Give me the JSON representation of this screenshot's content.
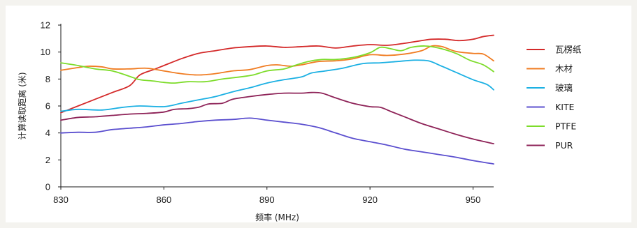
{
  "chart_data": {
    "type": "line",
    "xlabel": "频率 (MHz)",
    "ylabel": "计算读取距离 (米)",
    "xlim": [
      830,
      956
    ],
    "ylim": [
      0,
      12
    ],
    "x_ticks": [
      830,
      860,
      890,
      920,
      950
    ],
    "y_ticks": [
      0,
      2,
      4,
      6,
      8,
      10,
      12
    ],
    "grid": false,
    "legend_position": "right",
    "series": [
      {
        "name": "瓦楞纸",
        "color": "#d42a2a",
        "points": [
          [
            830,
            5.5
          ],
          [
            835,
            6.0
          ],
          [
            840,
            6.5
          ],
          [
            845,
            7.0
          ],
          [
            850,
            7.5
          ],
          [
            853,
            8.3
          ],
          [
            857,
            8.7
          ],
          [
            860,
            9.0
          ],
          [
            865,
            9.5
          ],
          [
            870,
            9.9
          ],
          [
            875,
            10.1
          ],
          [
            880,
            10.3
          ],
          [
            885,
            10.4
          ],
          [
            890,
            10.45
          ],
          [
            895,
            10.35
          ],
          [
            900,
            10.4
          ],
          [
            905,
            10.45
          ],
          [
            910,
            10.3
          ],
          [
            915,
            10.45
          ],
          [
            920,
            10.55
          ],
          [
            925,
            10.5
          ],
          [
            930,
            10.65
          ],
          [
            935,
            10.85
          ],
          [
            938,
            10.95
          ],
          [
            942,
            10.95
          ],
          [
            946,
            10.85
          ],
          [
            950,
            10.95
          ],
          [
            953,
            11.15
          ],
          [
            956,
            11.25
          ]
        ]
      },
      {
        "name": "木材",
        "color": "#f07c22",
        "points": [
          [
            830,
            8.65
          ],
          [
            835,
            8.85
          ],
          [
            838,
            8.95
          ],
          [
            842,
            8.9
          ],
          [
            845,
            8.75
          ],
          [
            850,
            8.75
          ],
          [
            855,
            8.8
          ],
          [
            860,
            8.6
          ],
          [
            865,
            8.4
          ],
          [
            870,
            8.3
          ],
          [
            875,
            8.4
          ],
          [
            880,
            8.6
          ],
          [
            885,
            8.7
          ],
          [
            890,
            9.0
          ],
          [
            893,
            9.05
          ],
          [
            897,
            8.95
          ],
          [
            900,
            9.05
          ],
          [
            905,
            9.3
          ],
          [
            910,
            9.35
          ],
          [
            915,
            9.5
          ],
          [
            920,
            9.8
          ],
          [
            925,
            9.75
          ],
          [
            930,
            9.85
          ],
          [
            935,
            10.1
          ],
          [
            938,
            10.45
          ],
          [
            941,
            10.4
          ],
          [
            945,
            10.05
          ],
          [
            950,
            9.9
          ],
          [
            953,
            9.85
          ],
          [
            956,
            9.35
          ]
        ]
      },
      {
        "name": "玻璃",
        "color": "#1bb0e3",
        "points": [
          [
            830,
            5.6
          ],
          [
            835,
            5.75
          ],
          [
            842,
            5.7
          ],
          [
            848,
            5.9
          ],
          [
            853,
            6.0
          ],
          [
            860,
            5.95
          ],
          [
            865,
            6.2
          ],
          [
            870,
            6.45
          ],
          [
            875,
            6.7
          ],
          [
            880,
            7.05
          ],
          [
            885,
            7.35
          ],
          [
            890,
            7.7
          ],
          [
            895,
            7.95
          ],
          [
            900,
            8.15
          ],
          [
            903,
            8.45
          ],
          [
            907,
            8.6
          ],
          [
            912,
            8.8
          ],
          [
            918,
            9.15
          ],
          [
            923,
            9.2
          ],
          [
            928,
            9.3
          ],
          [
            933,
            9.4
          ],
          [
            937,
            9.35
          ],
          [
            940,
            9.05
          ],
          [
            945,
            8.5
          ],
          [
            950,
            7.95
          ],
          [
            954,
            7.6
          ],
          [
            956,
            7.2
          ]
        ]
      },
      {
        "name": "KITE",
        "color": "#5b4fcf",
        "points": [
          [
            830,
            4.0
          ],
          [
            835,
            4.05
          ],
          [
            840,
            4.05
          ],
          [
            845,
            4.25
          ],
          [
            850,
            4.35
          ],
          [
            855,
            4.45
          ],
          [
            860,
            4.6
          ],
          [
            865,
            4.7
          ],
          [
            870,
            4.85
          ],
          [
            875,
            4.95
          ],
          [
            880,
            5.0
          ],
          [
            885,
            5.1
          ],
          [
            890,
            4.95
          ],
          [
            895,
            4.8
          ],
          [
            900,
            4.65
          ],
          [
            905,
            4.4
          ],
          [
            910,
            4.0
          ],
          [
            915,
            3.6
          ],
          [
            920,
            3.35
          ],
          [
            925,
            3.1
          ],
          [
            930,
            2.8
          ],
          [
            935,
            2.6
          ],
          [
            940,
            2.4
          ],
          [
            945,
            2.2
          ],
          [
            950,
            1.95
          ],
          [
            956,
            1.7
          ]
        ]
      },
      {
        "name": "PTFE",
        "color": "#7ddc2a",
        "points": [
          [
            830,
            9.2
          ],
          [
            835,
            9.0
          ],
          [
            840,
            8.75
          ],
          [
            845,
            8.6
          ],
          [
            850,
            8.2
          ],
          [
            853,
            7.95
          ],
          [
            857,
            7.85
          ],
          [
            860,
            7.75
          ],
          [
            863,
            7.7
          ],
          [
            867,
            7.8
          ],
          [
            872,
            7.8
          ],
          [
            877,
            8.0
          ],
          [
            882,
            8.15
          ],
          [
            886,
            8.3
          ],
          [
            890,
            8.6
          ],
          [
            895,
            8.75
          ],
          [
            898,
            9.0
          ],
          [
            902,
            9.3
          ],
          [
            906,
            9.45
          ],
          [
            910,
            9.45
          ],
          [
            915,
            9.6
          ],
          [
            920,
            9.95
          ],
          [
            923,
            10.35
          ],
          [
            926,
            10.25
          ],
          [
            929,
            10.1
          ],
          [
            932,
            10.35
          ],
          [
            936,
            10.45
          ],
          [
            940,
            10.3
          ],
          [
            945,
            9.9
          ],
          [
            949,
            9.4
          ],
          [
            953,
            9.05
          ],
          [
            956,
            8.55
          ]
        ]
      },
      {
        "name": "PUR",
        "color": "#8e2358",
        "points": [
          [
            830,
            4.95
          ],
          [
            835,
            5.15
          ],
          [
            840,
            5.2
          ],
          [
            845,
            5.3
          ],
          [
            850,
            5.4
          ],
          [
            855,
            5.45
          ],
          [
            860,
            5.55
          ],
          [
            863,
            5.75
          ],
          [
            867,
            5.8
          ],
          [
            870,
            5.9
          ],
          [
            873,
            6.15
          ],
          [
            877,
            6.2
          ],
          [
            880,
            6.5
          ],
          [
            885,
            6.7
          ],
          [
            890,
            6.85
          ],
          [
            895,
            6.95
          ],
          [
            900,
            6.95
          ],
          [
            903,
            7.0
          ],
          [
            906,
            6.95
          ],
          [
            910,
            6.6
          ],
          [
            915,
            6.2
          ],
          [
            920,
            5.95
          ],
          [
            923,
            5.9
          ],
          [
            926,
            5.6
          ],
          [
            930,
            5.2
          ],
          [
            935,
            4.7
          ],
          [
            940,
            4.3
          ],
          [
            945,
            3.9
          ],
          [
            950,
            3.55
          ],
          [
            956,
            3.2
          ]
        ]
      }
    ]
  }
}
